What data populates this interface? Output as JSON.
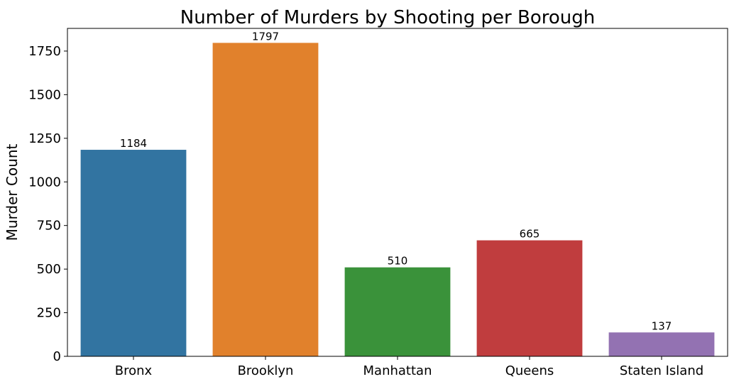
{
  "chart_data": {
    "type": "bar",
    "title": "Number of Murders by Shooting per Borough",
    "xlabel": "",
    "ylabel": "Murder Count",
    "categories": [
      "Bronx",
      "Brooklyn",
      "Manhattan",
      "Queens",
      "Staten Island"
    ],
    "values": [
      1184,
      1797,
      510,
      665,
      137
    ],
    "colors": [
      "#3274a1",
      "#e1812c",
      "#3a923a",
      "#c03d3e",
      "#9372b2"
    ],
    "ylim": [
      0,
      1880
    ],
    "yticks": [
      0,
      250,
      500,
      750,
      1000,
      1250,
      1500,
      1750
    ],
    "grid": false,
    "data_labels": true
  }
}
